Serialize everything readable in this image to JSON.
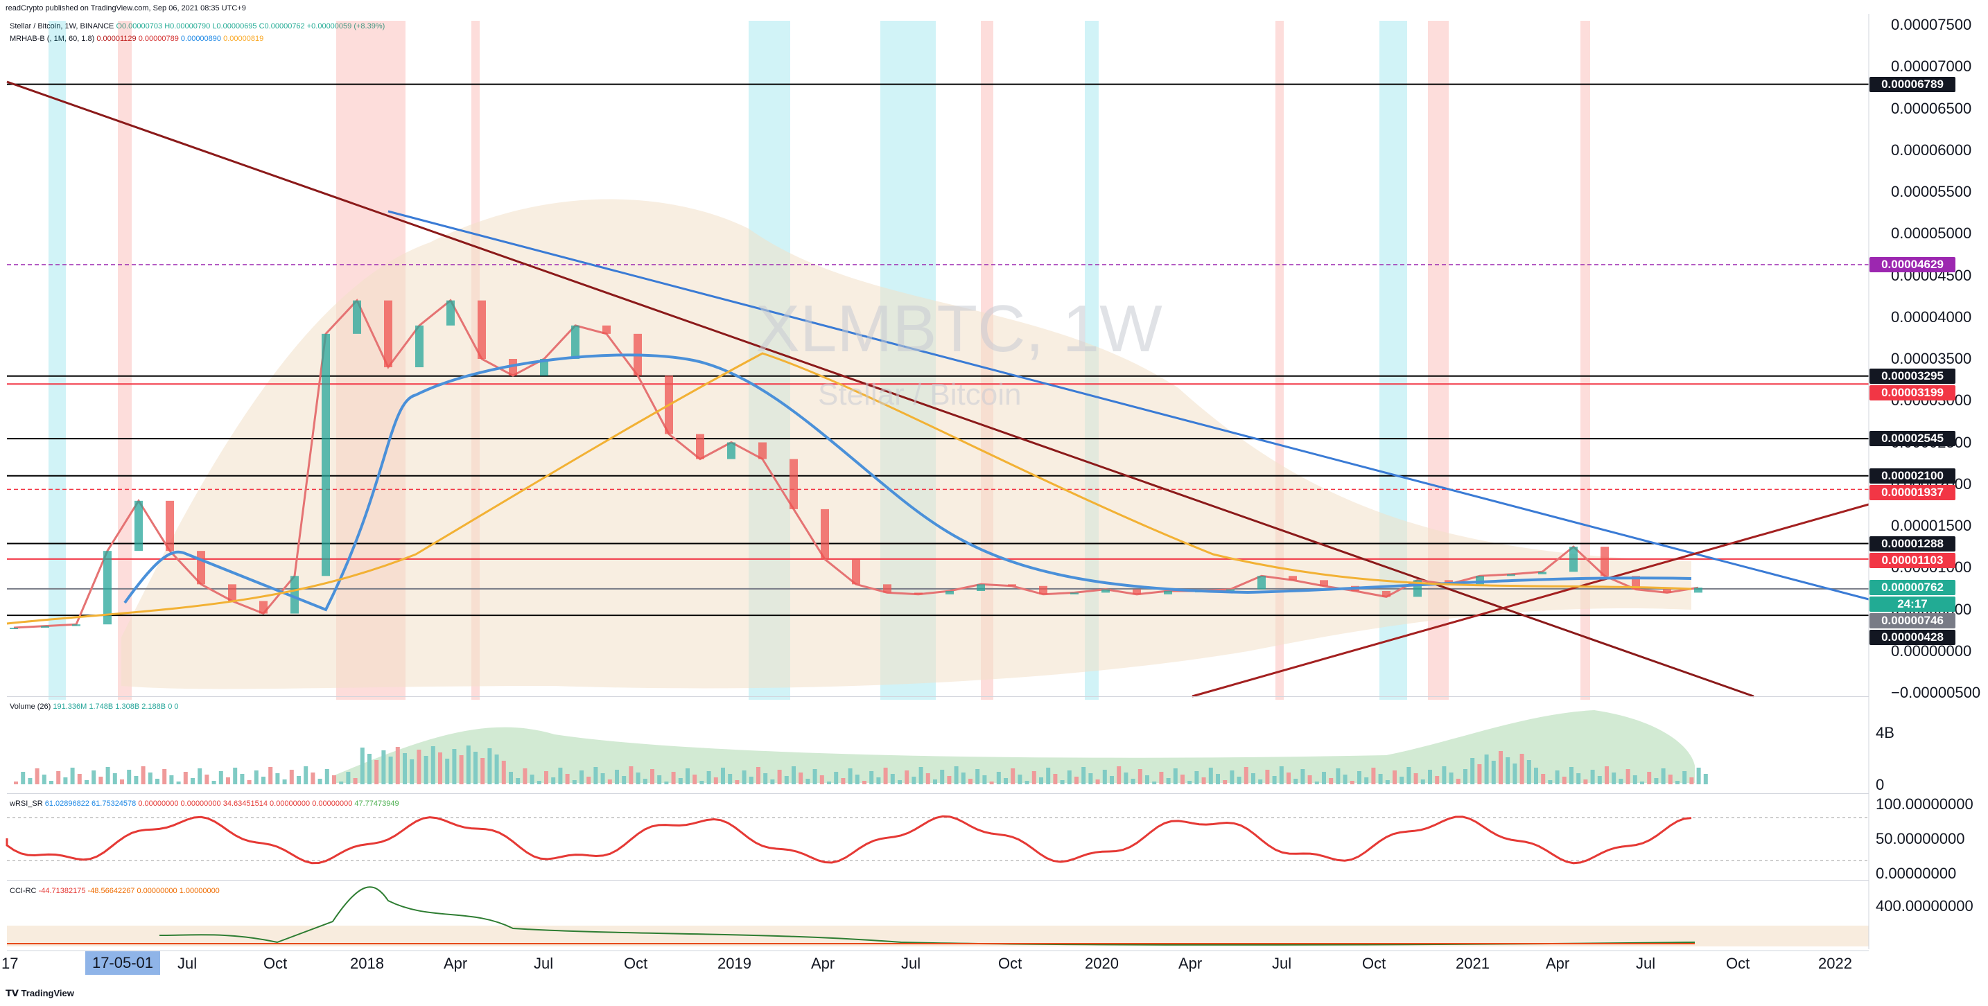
{
  "header": {
    "published": "readCrypto published on TradingView.com, Sep 06, 2021 08:35 UTC+9",
    "symbol_line": "Stellar / Bitcoin, 1W, BINANCE",
    "ohlc": {
      "o": "O0.00000703",
      "h": "H0.00000790",
      "l": "L0.00000695",
      "c": "C0.00000762",
      "chg": "+0.00000059 (+8.39%)"
    },
    "mrhab_label": "MRHAB-B",
    "mrhab_params": "(, 1M, 60, 1.8)",
    "mrhab_vals": [
      "0.00001129",
      "0.00000789",
      "0.00000890",
      "0.00000819"
    ]
  },
  "watermark": {
    "symbol": "XLMBTC, 1W",
    "name": "Stellar / Bitcoin"
  },
  "price_axis": {
    "ticks": [
      "0.00007500",
      "0.00007000",
      "0.00006500",
      "0.00006000",
      "0.00005500",
      "0.00005000",
      "0.00004500",
      "0.00004000",
      "0.00003500",
      "0.00003000",
      "0.00002500",
      "0.00002000",
      "0.00001500",
      "0.00001000",
      "0.00000500",
      "0.00000000",
      "−0.00000500"
    ],
    "badges": [
      {
        "text": "0.00006789",
        "bg": "#131722",
        "fg": "#ffffff",
        "value": 6.789e-05
      },
      {
        "text": "0.00004629",
        "bg": "#9c27b0",
        "fg": "#ffffff",
        "value": 4.629e-05
      },
      {
        "text": "0.00003295",
        "bg": "#131722",
        "fg": "#ffffff",
        "value": 3.295e-05
      },
      {
        "text": "0.00003199",
        "bg": "#f23645",
        "fg": "#ffffff",
        "value": 3.199e-05
      },
      {
        "text": "0.00002545",
        "bg": "#131722",
        "fg": "#ffffff",
        "value": 2.545e-05
      },
      {
        "text": "0.00002100",
        "bg": "#131722",
        "fg": "#ffffff",
        "value": 2.1e-05
      },
      {
        "text": "0.00001937",
        "bg": "#f23645",
        "fg": "#ffffff",
        "value": 1.937e-05
      },
      {
        "text": "0.00001288",
        "bg": "#131722",
        "fg": "#ffffff",
        "value": 1.288e-05
      },
      {
        "text": "0.00001103",
        "bg": "#f23645",
        "fg": "#ffffff",
        "value": 1.103e-05
      },
      {
        "text": "0.00000762",
        "bg": "#22ab94",
        "fg": "#ffffff",
        "value": 7.62e-06
      },
      {
        "text": "24:17",
        "bg": "#22ab94",
        "fg": "#ffffff",
        "value": null
      },
      {
        "text": "0.00000746",
        "bg": "#787b86",
        "fg": "#ffffff",
        "value": 7.46e-06
      },
      {
        "text": "0.00000428",
        "bg": "#131722",
        "fg": "#ffffff",
        "value": 4.28e-06
      }
    ]
  },
  "volume": {
    "label": "Volume (26)",
    "vals": [
      "191.336M",
      "1.748B",
      "1.308B",
      "2.188B",
      "0",
      "0"
    ],
    "axis": [
      "4B",
      "0"
    ]
  },
  "rsi": {
    "label": "wRSI_SR",
    "vals": [
      "61.02896822",
      "61.75324578",
      "0.00000000",
      "0.00000000",
      "34.63451514",
      "0.00000000",
      "0.00000000",
      "47.77473949"
    ],
    "axis": [
      "100.00000000",
      "50.00000000",
      "0.00000000"
    ]
  },
  "cci": {
    "label": "CCI-RC",
    "vals": [
      "-44.71382175",
      "-48.56642267",
      "0.00000000",
      "1.00000000"
    ],
    "axis": [
      "400.00000000"
    ]
  },
  "time_axis": {
    "labels": [
      "17",
      "Jul",
      "Oct",
      "2018",
      "Apr",
      "Jul",
      "Oct",
      "2019",
      "Apr",
      "Jul",
      "Oct",
      "2020",
      "Apr",
      "Jul",
      "Oct",
      "2021",
      "Apr",
      "Jul",
      "Oct",
      "2022"
    ],
    "cursor_label": "17-05-01"
  },
  "footer": {
    "brand": "TradingView"
  },
  "chart_data": {
    "type": "line",
    "title": "XLMBTC, 1W",
    "subtitle": "Stellar / Bitcoin",
    "xlabel": "",
    "ylabel": "",
    "ylim": [
      -5e-06,
      7.5e-05
    ],
    "x": [
      "2017-03",
      "2017-04",
      "2017-05",
      "2017-06",
      "2017-07",
      "2017-08",
      "2017-09",
      "2017-10",
      "2017-11",
      "2017-12",
      "2018-01",
      "2018-02",
      "2018-03",
      "2018-04",
      "2018-05",
      "2018-06",
      "2018-07",
      "2018-08",
      "2018-09",
      "2018-10",
      "2018-11",
      "2018-12",
      "2019-01",
      "2019-02",
      "2019-03",
      "2019-04",
      "2019-05",
      "2019-06",
      "2019-07",
      "2019-08",
      "2019-09",
      "2019-10",
      "2019-11",
      "2019-12",
      "2020-01",
      "2020-02",
      "2020-03",
      "2020-04",
      "2020-05",
      "2020-06",
      "2020-07",
      "2020-08",
      "2020-09",
      "2020-10",
      "2020-11",
      "2020-12",
      "2021-01",
      "2021-02",
      "2021-03",
      "2021-04",
      "2021-05",
      "2021-06",
      "2021-07",
      "2021-08",
      "2021-09"
    ],
    "series": [
      {
        "values": [
          2.8e-06,
          3e-06,
          3.2e-06,
          1.2e-05,
          1.8e-05,
          1.2e-05,
          8e-06,
          6e-06,
          4.5e-06,
          9e-06,
          3.8e-05,
          4.2e-05,
          3.4e-05,
          3.9e-05,
          4.2e-05,
          3.5e-05,
          3.3e-05,
          3.5e-05,
          3.9e-05,
          3.8e-05,
          3.3e-05,
          2.6e-05,
          2.3e-05,
          2.5e-05,
          2.3e-05,
          1.7e-05,
          1.1e-05,
          8e-06,
          7e-06,
          6.8e-06,
          7.2e-06,
          8e-06,
          7.8e-06,
          6.8e-06,
          7e-06,
          7.4e-06,
          6.8e-06,
          7.2e-06,
          7.2e-06,
          7.4e-06,
          9e-06,
          8.5e-06,
          7.8e-06,
          7.2e-06,
          6.5e-06,
          8.5e-06,
          8e-06,
          9e-06,
          9.2e-06,
          9.5e-06,
          1.25e-05,
          9e-06,
          7.4e-06,
          7e-06,
          7.6e-06
        ]
      }
    ],
    "hlines": [
      6.789e-05,
      4.629e-05,
      3.295e-05,
      3.199e-05,
      2.545e-05,
      2.1e-05,
      1.937e-05,
      1.288e-05,
      1.103e-05,
      7.46e-06,
      4.28e-06
    ],
    "grid": false
  }
}
